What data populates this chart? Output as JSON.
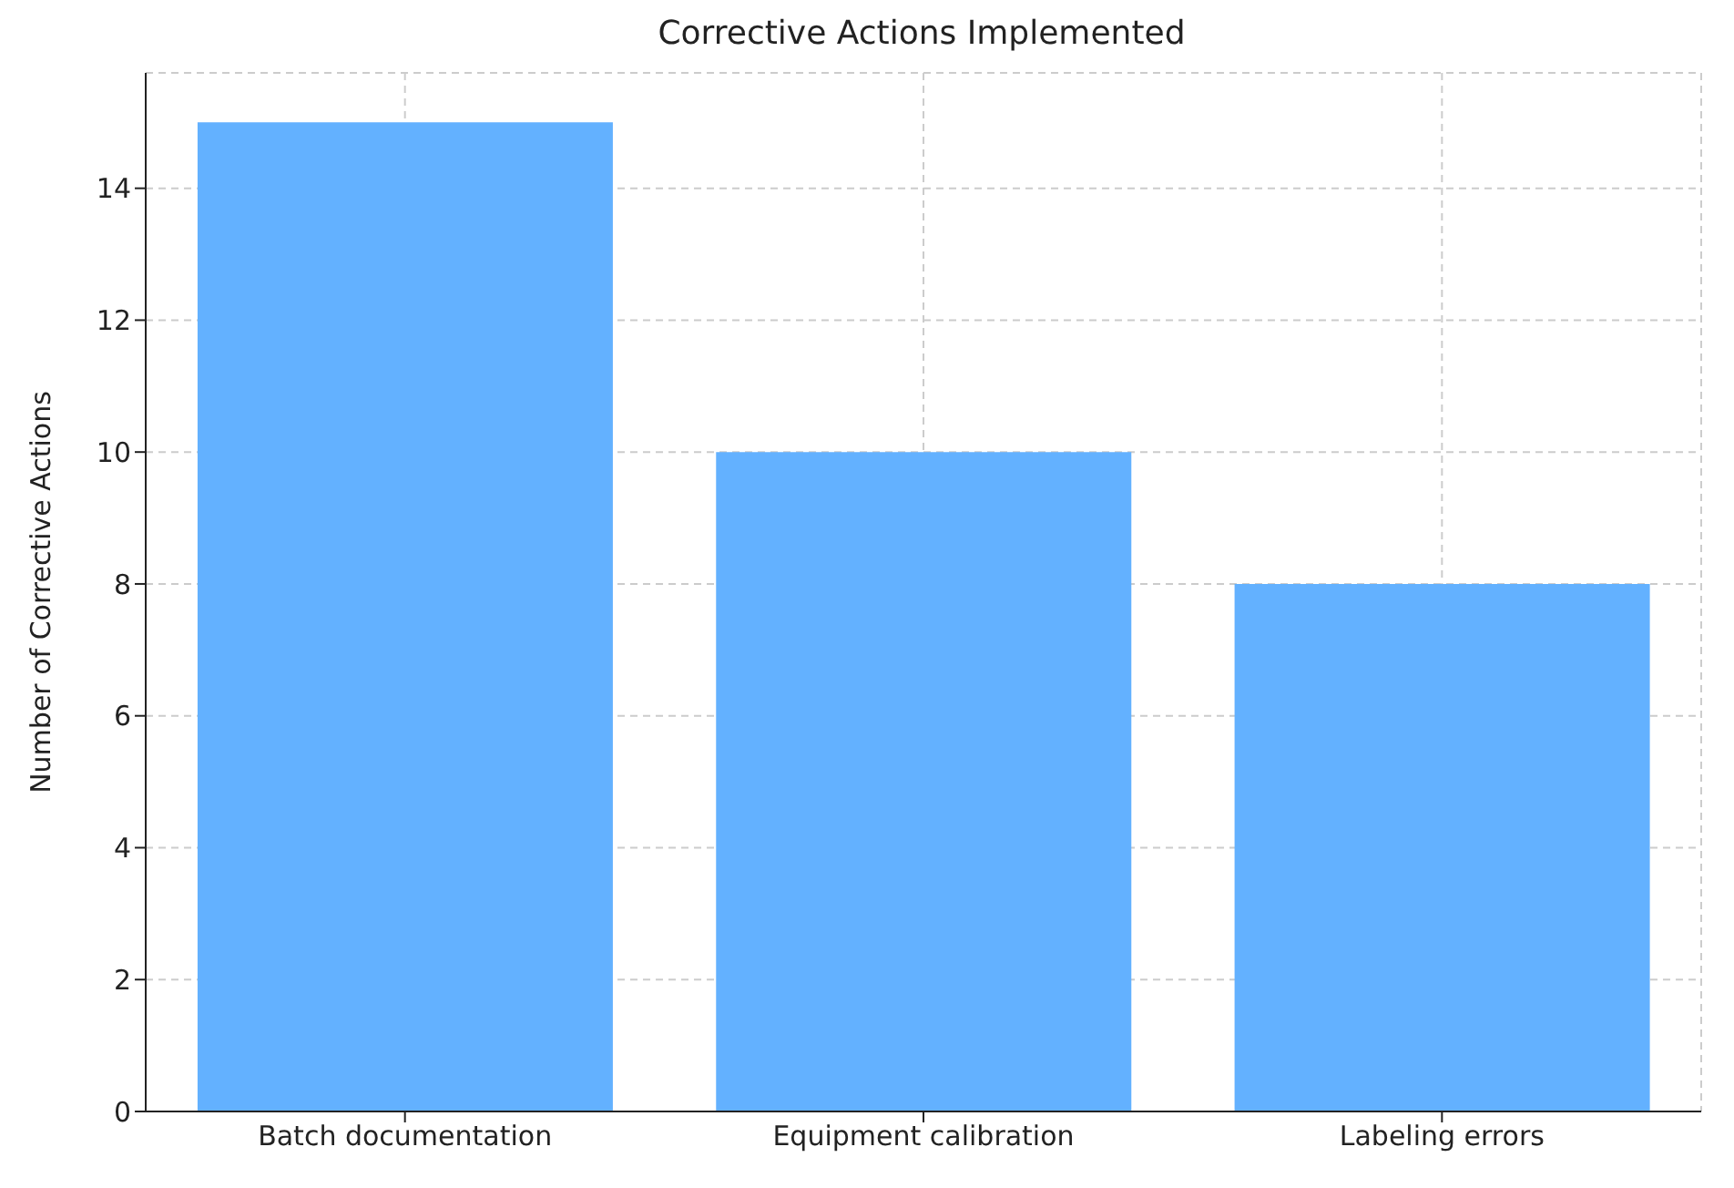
{
  "chart_data": {
    "type": "bar",
    "title": "Corrective Actions Implemented",
    "ylabel": "Number of Corrective Actions",
    "categories": [
      "Batch documentation",
      "Equipment calibration",
      "Labeling errors"
    ],
    "values": [
      15,
      10,
      8
    ],
    "color": "#63b1ff",
    "ylim": [
      0,
      15.75
    ],
    "yticks": [
      0,
      2,
      4,
      6,
      8,
      10,
      12,
      14
    ],
    "grid": true
  }
}
